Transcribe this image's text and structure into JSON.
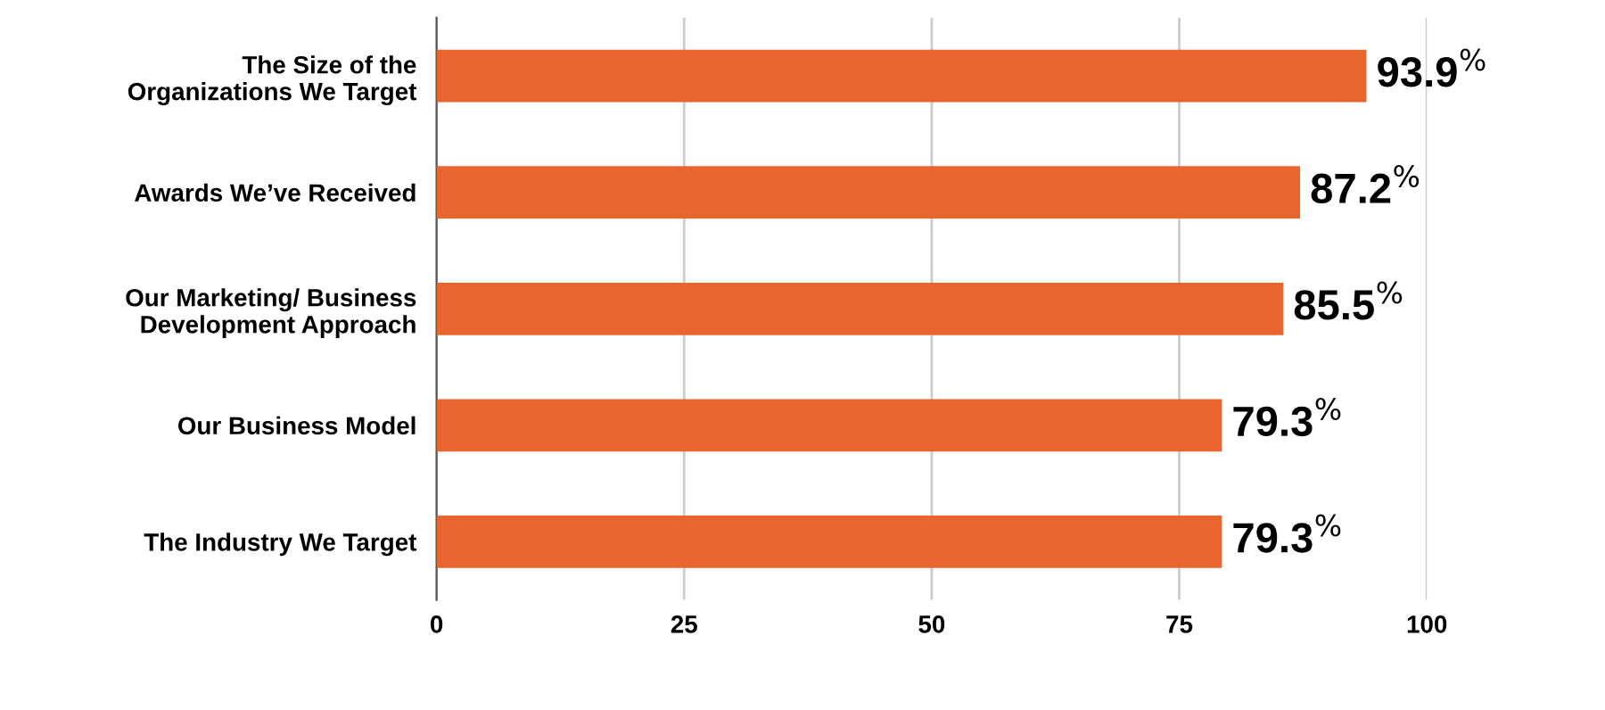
{
  "chart_data": {
    "type": "bar",
    "orientation": "horizontal",
    "categories": [
      "The Size of the\nOrganizations We Target",
      "Awards We’ve Received",
      "Our Marketing/ Business\nDevelopment Approach",
      "Our Business Model",
      "The Industry We Target"
    ],
    "values": [
      93.9,
      87.2,
      85.5,
      79.3,
      79.3
    ],
    "value_labels": [
      "93.9$^{%}$",
      "87.2$^{%}$",
      "85.5$^{%}$",
      "79.3$^{%}$",
      "79.3$^{%}$"
    ],
    "color": "#e8652f",
    "xlim": [
      0,
      100
    ],
    "xticks": [
      0,
      25,
      50,
      75,
      100
    ],
    "grid": "x"
  }
}
